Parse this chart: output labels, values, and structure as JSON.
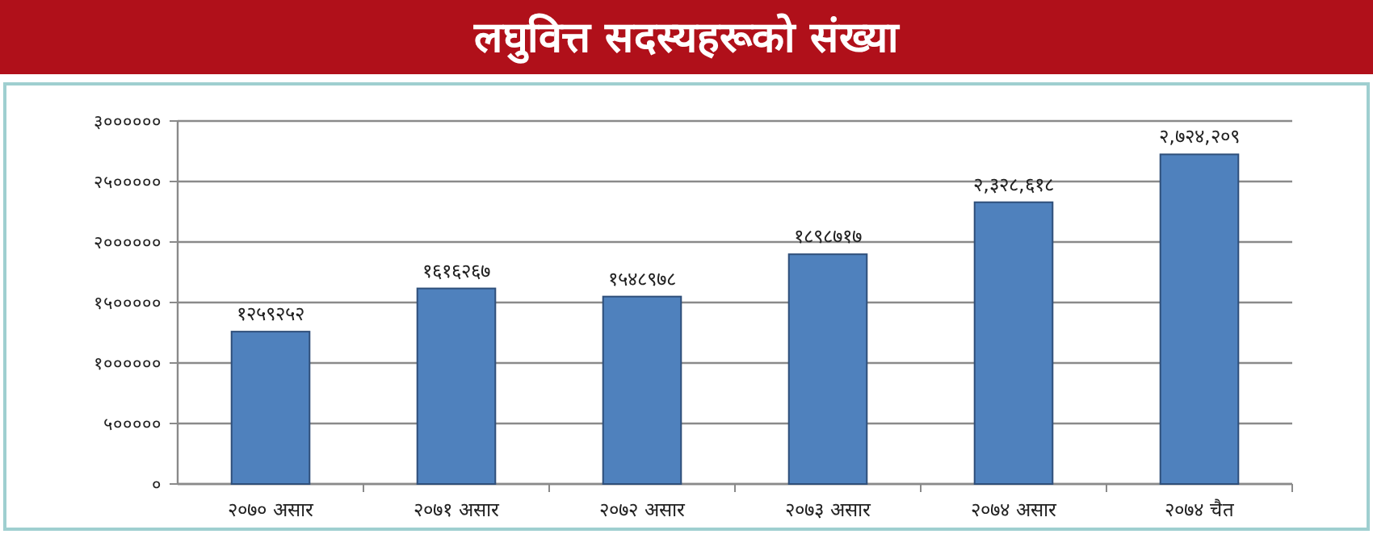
{
  "chart_data": {
    "type": "bar",
    "title": "लघुवित्त सदस्यहरूको संख्या",
    "categories": [
      "२०७० असार",
      "२०७१ असार",
      "२०७२ असार",
      "२०७३ असार",
      "२०७४ असार",
      "२०७४ चैत"
    ],
    "values": [
      1259252,
      1616267,
      1548978,
      1898717,
      2328618,
      2724209
    ],
    "value_labels": [
      "१२५९२५२",
      "१६१६२६७",
      "१५४८९७८",
      "१८९८७१७",
      "२,३२८,६१८",
      "२,७२४,२०९"
    ],
    "color": "#4f81bd",
    "ylim": [
      0,
      3000000
    ],
    "yticks": [
      {
        "value": 0,
        "label": "०"
      },
      {
        "value": 500000,
        "label": "५०००००"
      },
      {
        "value": 1000000,
        "label": "१००००००"
      },
      {
        "value": 1500000,
        "label": "१५०००००"
      },
      {
        "value": 2000000,
        "label": "२००००००"
      },
      {
        "value": 2500000,
        "label": "२५०००००"
      },
      {
        "value": 3000000,
        "label": "३००००००"
      }
    ],
    "grid": "y"
  }
}
